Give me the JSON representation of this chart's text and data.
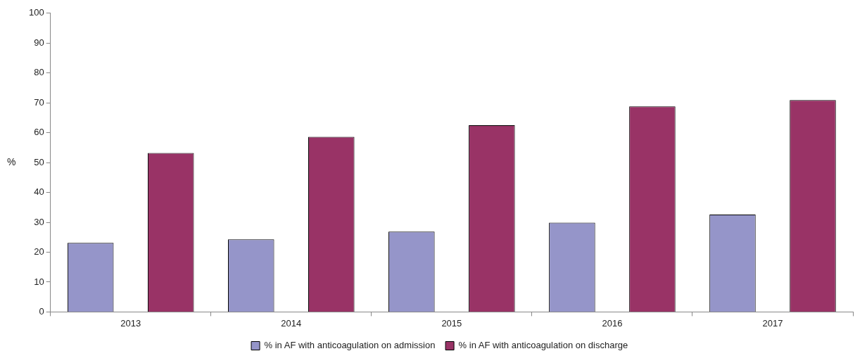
{
  "chart_data": {
    "type": "bar",
    "ylabel": "%",
    "categories": [
      "2013",
      "2014",
      "2015",
      "2016",
      "2017"
    ],
    "series": [
      {
        "name": "% in AF with anticoagulation on admission",
        "color": "#9595c9",
        "values": [
          23.1,
          24.3,
          26.9,
          29.9,
          32.6
        ]
      },
      {
        "name": "% in AF with anticoagulation on discharge",
        "color": "#993366",
        "values": [
          53.2,
          58.6,
          62.5,
          68.8,
          70.9
        ]
      }
    ],
    "ylim": [
      0,
      100
    ],
    "yticks": [
      0,
      10,
      20,
      30,
      40,
      50,
      60,
      70,
      80,
      90,
      100
    ],
    "grid": false,
    "legend": "bottom"
  }
}
